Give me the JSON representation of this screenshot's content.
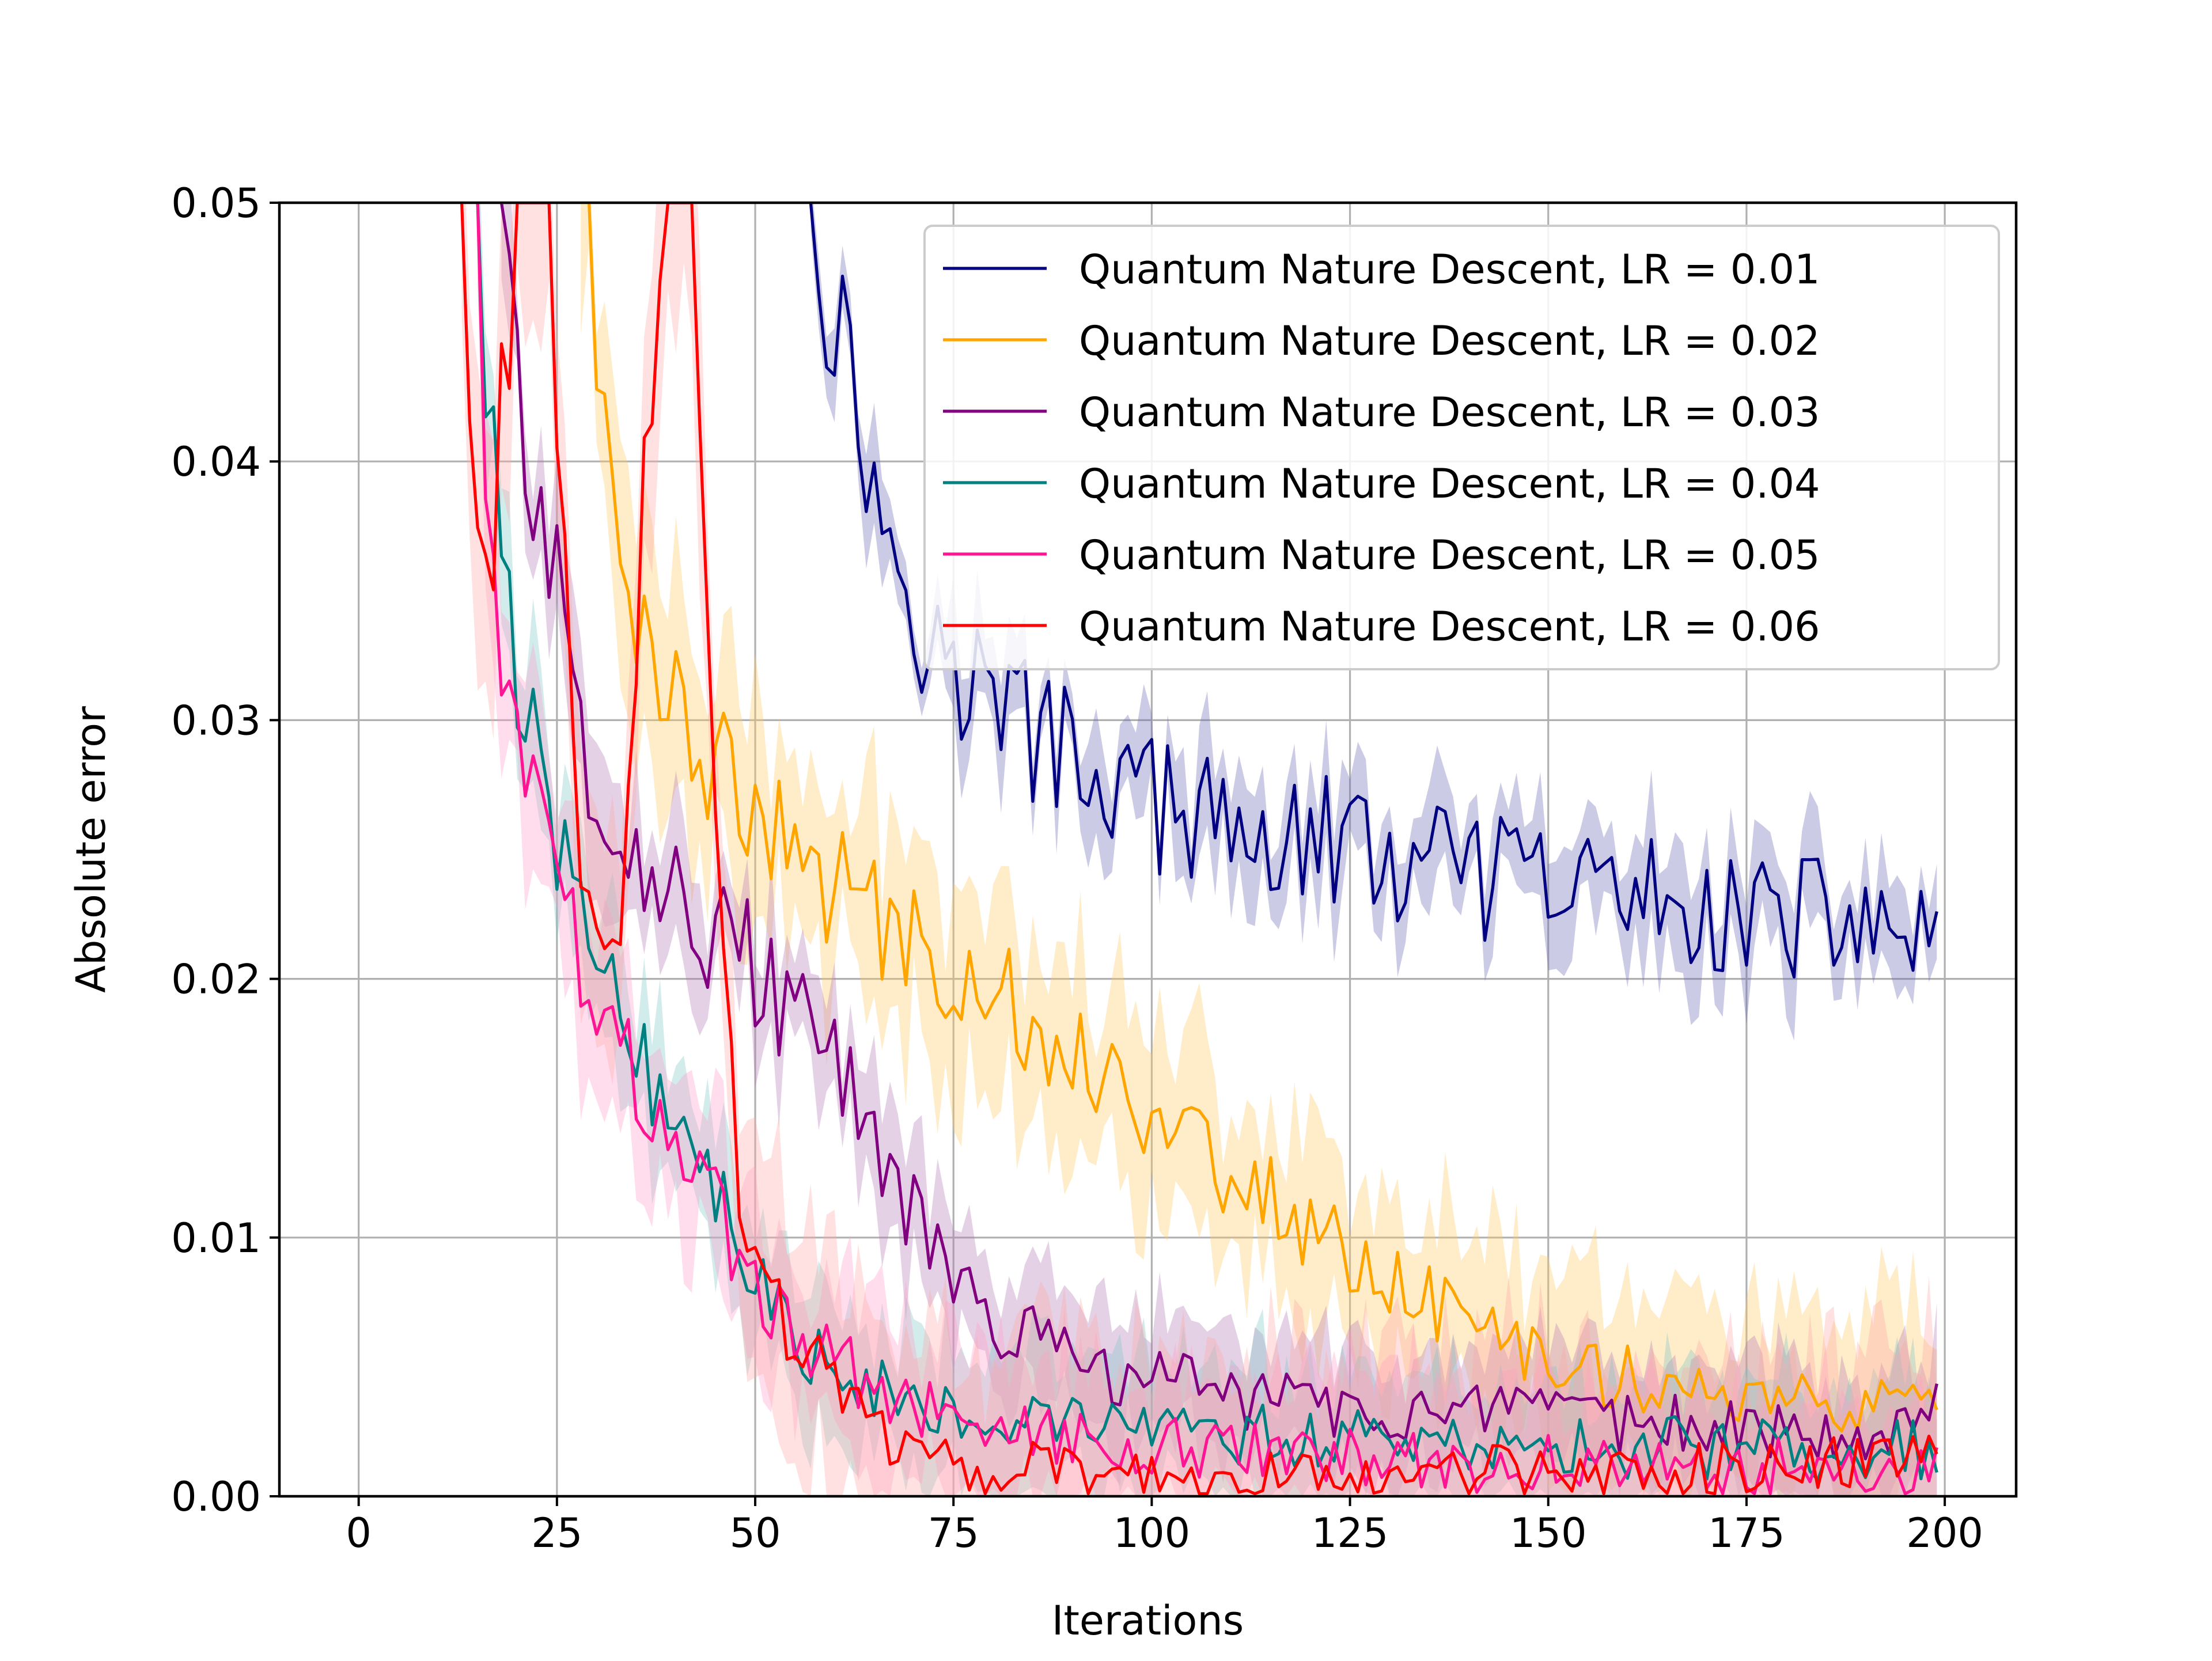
{
  "chart_data": {
    "type": "line",
    "title": "",
    "xlabel": "Iterations",
    "ylabel": "Absolute error",
    "xlim": [
      -10,
      209
    ],
    "ylim": [
      0.0,
      0.05
    ],
    "xticks": [
      0,
      25,
      50,
      75,
      100,
      125,
      150,
      175,
      200
    ],
    "xtick_labels": [
      "0",
      "25",
      "50",
      "75",
      "100",
      "125",
      "150",
      "175",
      "200"
    ],
    "yticks": [
      0.0,
      0.01,
      0.02,
      0.03,
      0.04,
      0.05
    ],
    "ytick_labels": [
      "0.00",
      "0.01",
      "0.02",
      "0.03",
      "0.04",
      "0.05"
    ],
    "grid": true,
    "legend_position": "upper right",
    "series": [
      {
        "name": "Quantum Nature Descent, LR = 0.01",
        "color": "#000080",
        "points": [
          [
            57,
            0.05
          ],
          [
            60,
            0.046
          ],
          [
            63,
            0.0415
          ],
          [
            65,
            0.0395
          ],
          [
            67,
            0.037
          ],
          [
            70,
            0.035
          ],
          [
            73,
            0.0325
          ],
          [
            76,
            0.0315
          ],
          [
            80,
            0.031
          ],
          [
            85,
            0.0295
          ],
          [
            90,
            0.0285
          ],
          [
            95,
            0.0278
          ],
          [
            100,
            0.0268
          ],
          [
            105,
            0.026
          ],
          [
            110,
            0.0257
          ],
          [
            115,
            0.0252
          ],
          [
            120,
            0.0255
          ],
          [
            125,
            0.025
          ],
          [
            130,
            0.0245
          ],
          [
            135,
            0.0242
          ],
          [
            140,
            0.024
          ],
          [
            145,
            0.0237
          ],
          [
            150,
            0.0236
          ],
          [
            155,
            0.0235
          ],
          [
            160,
            0.0232
          ],
          [
            165,
            0.0231
          ],
          [
            170,
            0.0228
          ],
          [
            175,
            0.0226
          ],
          [
            180,
            0.0224
          ],
          [
            185,
            0.0223
          ],
          [
            190,
            0.0221
          ],
          [
            195,
            0.022
          ],
          [
            199,
            0.0205
          ]
        ],
        "band": 0.0018,
        "band_color": "#6a6ab5"
      },
      {
        "name": "Quantum Nature Descent, LR = 0.02",
        "color": "#ffa500",
        "points": [
          [
            28,
            0.05
          ],
          [
            30,
            0.044
          ],
          [
            32,
            0.0395
          ],
          [
            34,
            0.036
          ],
          [
            36,
            0.034
          ],
          [
            38,
            0.0325
          ],
          [
            40,
            0.031
          ],
          [
            43,
            0.0295
          ],
          [
            46,
            0.028
          ],
          [
            50,
            0.026
          ],
          [
            55,
            0.0245
          ],
          [
            60,
            0.0235
          ],
          [
            65,
            0.0225
          ],
          [
            70,
            0.0215
          ],
          [
            75,
            0.0205
          ],
          [
            80,
            0.0195
          ],
          [
            85,
            0.0185
          ],
          [
            90,
            0.0172
          ],
          [
            95,
            0.0162
          ],
          [
            100,
            0.015
          ],
          [
            105,
            0.0138
          ],
          [
            110,
            0.0125
          ],
          [
            115,
            0.0115
          ],
          [
            120,
            0.0103
          ],
          [
            125,
            0.0093
          ],
          [
            130,
            0.0085
          ],
          [
            135,
            0.0075
          ],
          [
            140,
            0.0066
          ],
          [
            145,
            0.006
          ],
          [
            150,
            0.0054
          ],
          [
            155,
            0.005
          ],
          [
            160,
            0.0046
          ],
          [
            165,
            0.0043
          ],
          [
            170,
            0.004
          ],
          [
            175,
            0.0038
          ],
          [
            180,
            0.0036
          ],
          [
            185,
            0.0034
          ],
          [
            190,
            0.0033
          ],
          [
            195,
            0.0032
          ],
          [
            199,
            0.003
          ]
        ],
        "band": 0.0035,
        "band_color": "#ffc960"
      },
      {
        "name": "Quantum Nature Descent, LR = 0.03",
        "color": "#800080",
        "points": [
          [
            18,
            0.05
          ],
          [
            20,
            0.044
          ],
          [
            22,
            0.0395
          ],
          [
            24,
            0.036
          ],
          [
            26,
            0.033
          ],
          [
            28,
            0.03
          ],
          [
            30,
            0.028
          ],
          [
            32,
            0.0265
          ],
          [
            35,
            0.025
          ],
          [
            38,
            0.0238
          ],
          [
            41,
            0.0228
          ],
          [
            45,
            0.0218
          ],
          [
            50,
            0.0205
          ],
          [
            55,
            0.0185
          ],
          [
            60,
            0.0165
          ],
          [
            65,
            0.0138
          ],
          [
            70,
            0.0108
          ],
          [
            75,
            0.0082
          ],
          [
            80,
            0.0068
          ],
          [
            85,
            0.006
          ],
          [
            90,
            0.0053
          ],
          [
            95,
            0.0048
          ],
          [
            100,
            0.0045
          ],
          [
            110,
            0.004
          ],
          [
            120,
            0.0036
          ],
          [
            130,
            0.0033
          ],
          [
            140,
            0.003
          ],
          [
            150,
            0.0029
          ],
          [
            160,
            0.0028
          ],
          [
            170,
            0.0027
          ],
          [
            180,
            0.0027
          ],
          [
            190,
            0.0026
          ],
          [
            199,
            0.0035
          ]
        ],
        "band": 0.0022,
        "band_color": "#b57ab5"
      },
      {
        "name": "Quantum Nature Descent, LR = 0.04",
        "color": "#008080",
        "points": [
          [
            15,
            0.05
          ],
          [
            16,
            0.043
          ],
          [
            17,
            0.039
          ],
          [
            18,
            0.036
          ],
          [
            20,
            0.032
          ],
          [
            22,
            0.029
          ],
          [
            24,
            0.026
          ],
          [
            26,
            0.0245
          ],
          [
            28,
            0.023
          ],
          [
            30,
            0.0215
          ],
          [
            32,
            0.02
          ],
          [
            34,
            0.0185
          ],
          [
            36,
            0.017
          ],
          [
            38,
            0.0158
          ],
          [
            40,
            0.0147
          ],
          [
            42,
            0.0137
          ],
          [
            44,
            0.0125
          ],
          [
            46,
            0.011
          ],
          [
            48,
            0.0095
          ],
          [
            50,
            0.0082
          ],
          [
            52,
            0.0072
          ],
          [
            55,
            0.0063
          ],
          [
            58,
            0.0055
          ],
          [
            62,
            0.0048
          ],
          [
            66,
            0.0043
          ],
          [
            70,
            0.0039
          ],
          [
            75,
            0.0035
          ],
          [
            80,
            0.0032
          ],
          [
            90,
            0.0028
          ],
          [
            100,
            0.0025
          ],
          [
            120,
            0.0022
          ],
          [
            140,
            0.002
          ],
          [
            160,
            0.0019
          ],
          [
            180,
            0.0018
          ],
          [
            199,
            0.0018
          ]
        ],
        "band": 0.0025,
        "band_color": "#7fc6c6"
      },
      {
        "name": "Quantum Nature Descent, LR = 0.05",
        "color": "#ff1493",
        "points": [
          [
            15,
            0.05
          ],
          [
            16,
            0.042
          ],
          [
            17,
            0.038
          ],
          [
            18,
            0.034
          ],
          [
            20,
            0.03
          ],
          [
            22,
            0.027
          ],
          [
            24,
            0.0245
          ],
          [
            26,
            0.0225
          ],
          [
            28,
            0.0205
          ],
          [
            30,
            0.019
          ],
          [
            32,
            0.0178
          ],
          [
            34,
            0.0167
          ],
          [
            36,
            0.0157
          ],
          [
            38,
            0.0148
          ],
          [
            40,
            0.0138
          ],
          [
            42,
            0.0128
          ],
          [
            44,
            0.0117
          ],
          [
            46,
            0.0105
          ],
          [
            48,
            0.0093
          ],
          [
            50,
            0.0082
          ],
          [
            52,
            0.0073
          ],
          [
            55,
            0.0064
          ],
          [
            58,
            0.0056
          ],
          [
            62,
            0.0048
          ],
          [
            66,
            0.0042
          ],
          [
            70,
            0.0037
          ],
          [
            75,
            0.0032
          ],
          [
            80,
            0.0028
          ],
          [
            90,
            0.0023
          ],
          [
            100,
            0.002
          ],
          [
            120,
            0.0016
          ],
          [
            140,
            0.0013
          ],
          [
            160,
            0.0012
          ],
          [
            180,
            0.0011
          ],
          [
            199,
            0.0012
          ]
        ],
        "band": 0.003,
        "band_color": "#ff9ec8"
      },
      {
        "name": "Quantum Nature Descent, LR = 0.06",
        "color": "#ff0000",
        "points": [
          [
            13,
            0.05
          ],
          [
            14,
            0.04
          ],
          [
            15,
            0.037
          ],
          [
            16,
            0.0365
          ],
          [
            17,
            0.038
          ],
          [
            18,
            0.041
          ],
          [
            19,
            0.045
          ],
          [
            20,
            0.05
          ],
          [
            24,
            0.05
          ],
          [
            25,
            0.042
          ],
          [
            26,
            0.036
          ],
          [
            27,
            0.03
          ],
          [
            28,
            0.025
          ],
          [
            29,
            0.022
          ],
          [
            30,
            0.0205
          ],
          [
            31,
            0.02
          ],
          [
            32,
            0.021
          ],
          [
            33,
            0.0235
          ],
          [
            34,
            0.028
          ],
          [
            35,
            0.033
          ],
          [
            36,
            0.04
          ],
          [
            37,
            0.043
          ],
          [
            38,
            0.045
          ],
          [
            39,
            0.05
          ],
          [
            42,
            0.05
          ],
          [
            43,
            0.04
          ],
          [
            44,
            0.032
          ],
          [
            45,
            0.026
          ],
          [
            46,
            0.02
          ],
          [
            47,
            0.016
          ],
          [
            48,
            0.012
          ],
          [
            50,
            0.0085
          ],
          [
            52,
            0.0072
          ],
          [
            55,
            0.0065
          ],
          [
            58,
            0.0058
          ],
          [
            61,
            0.0045
          ],
          [
            64,
            0.0032
          ],
          [
            68,
            0.0022
          ],
          [
            72,
            0.0016
          ],
          [
            76,
            0.0012
          ],
          [
            80,
            0.001
          ],
          [
            90,
            0.0009
          ],
          [
            100,
            0.0009
          ],
          [
            120,
            0.0008
          ],
          [
            140,
            0.0008
          ],
          [
            160,
            0.0009
          ],
          [
            180,
            0.001
          ],
          [
            190,
            0.0013
          ],
          [
            199,
            0.0015
          ]
        ],
        "band": 0.0045,
        "band_color": "#ffaaaa"
      }
    ]
  }
}
